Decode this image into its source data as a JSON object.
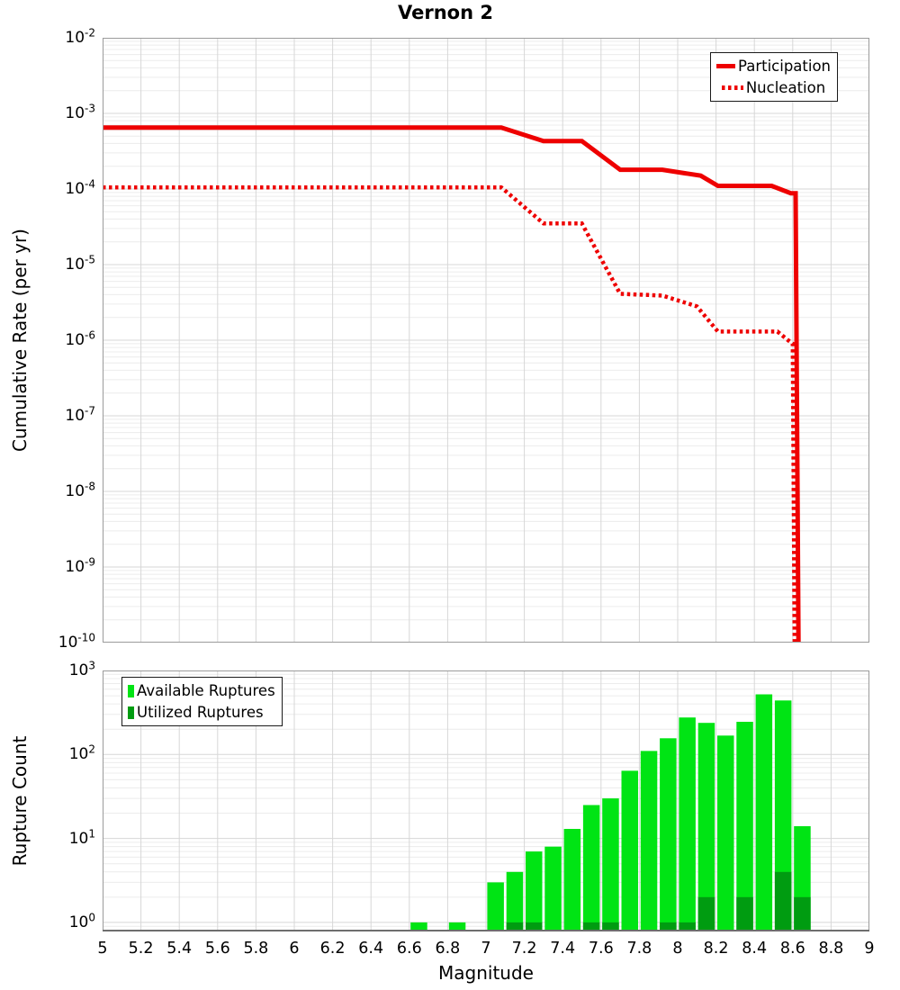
{
  "title": "Vernon 2",
  "colors": {
    "line_red": "#ee0000",
    "available_green": "#00e414",
    "utilized_green": "#009c11",
    "grid_major": "#d7d7d7",
    "grid_minor": "#ececec",
    "plot_border": "#9b9b9b",
    "axis_dark": "#6e6e6e"
  },
  "chart_data": [
    {
      "type": "line",
      "title": "Vernon 2",
      "ylabel": "Cumulative Rate (per yr)",
      "xlabel": "",
      "xlim": [
        5,
        9
      ],
      "ylim": [
        1e-10,
        0.01
      ],
      "grid": true,
      "y_tick_exponents": [
        -2,
        -3,
        -4,
        -5,
        -6,
        -7,
        -8,
        -9,
        -10
      ],
      "legend_position": "top-right",
      "series": [
        {
          "name": "Participation",
          "style": "solid",
          "color": "#ee0000",
          "points": [
            [
              5.0,
              0.00065
            ],
            [
              7.08,
              0.00065
            ],
            [
              7.3,
              0.00043
            ],
            [
              7.5,
              0.00043
            ],
            [
              7.7,
              0.00018
            ],
            [
              7.92,
              0.00018
            ],
            [
              8.12,
              0.00015
            ],
            [
              8.21,
              0.00011
            ],
            [
              8.49,
              0.00011
            ],
            [
              8.59,
              8.8e-05
            ],
            [
              8.615,
              8.8e-05
            ],
            [
              8.63,
              1e-11
            ]
          ]
        },
        {
          "name": "Nucleation",
          "style": "dotted",
          "color": "#ee0000",
          "points": [
            [
              5.0,
              0.000105
            ],
            [
              7.08,
              0.000105
            ],
            [
              7.3,
              3.5e-05
            ],
            [
              7.5,
              3.5e-05
            ],
            [
              7.7,
              4.1e-06
            ],
            [
              7.92,
              3.9e-06
            ],
            [
              8.1,
              2.8e-06
            ],
            [
              8.21,
              1.3e-06
            ],
            [
              8.52,
              1.3e-06
            ],
            [
              8.58,
              9.8e-07
            ],
            [
              8.6,
              9e-07
            ],
            [
              8.61,
              1e-11
            ]
          ]
        }
      ]
    },
    {
      "type": "bar",
      "ylabel": "Rupture Count",
      "xlabel": "Magnitude",
      "xlim": [
        5,
        9
      ],
      "ylim": [
        0.78,
        1000
      ],
      "bin_width": 0.1,
      "grid": true,
      "y_tick_exponents": [
        3,
        2,
        1,
        0
      ],
      "x_tick_labels": [
        "5",
        "5.2",
        "5.4",
        "5.6",
        "5.8",
        "6",
        "6.2",
        "6.4",
        "6.6",
        "6.8",
        "7",
        "7.2",
        "7.4",
        "7.6",
        "7.8",
        "8",
        "8.2",
        "8.4",
        "8.6",
        "8.8",
        "9"
      ],
      "legend_position": "top-left",
      "series": [
        {
          "name": "Available Ruptures",
          "color": "#00e414",
          "bars": [
            [
              6.6,
              1
            ],
            [
              6.8,
              1
            ],
            [
              7.0,
              3
            ],
            [
              7.1,
              4
            ],
            [
              7.2,
              7
            ],
            [
              7.3,
              8
            ],
            [
              7.4,
              13
            ],
            [
              7.5,
              25
            ],
            [
              7.6,
              30
            ],
            [
              7.7,
              64
            ],
            [
              7.8,
              110
            ],
            [
              7.9,
              156
            ],
            [
              8.0,
              276
            ],
            [
              8.1,
              238
            ],
            [
              8.2,
              168
            ],
            [
              8.3,
              245
            ],
            [
              8.4,
              520
            ],
            [
              8.5,
              440
            ],
            [
              8.6,
              14
            ]
          ]
        },
        {
          "name": "Utilized Ruptures",
          "color": "#009c11",
          "bars": [
            [
              7.1,
              1
            ],
            [
              7.2,
              1
            ],
            [
              7.5,
              1
            ],
            [
              7.6,
              1
            ],
            [
              7.9,
              1
            ],
            [
              8.0,
              1
            ],
            [
              8.1,
              2
            ],
            [
              8.3,
              2
            ],
            [
              8.5,
              4
            ],
            [
              8.6,
              2
            ]
          ]
        }
      ]
    }
  ]
}
